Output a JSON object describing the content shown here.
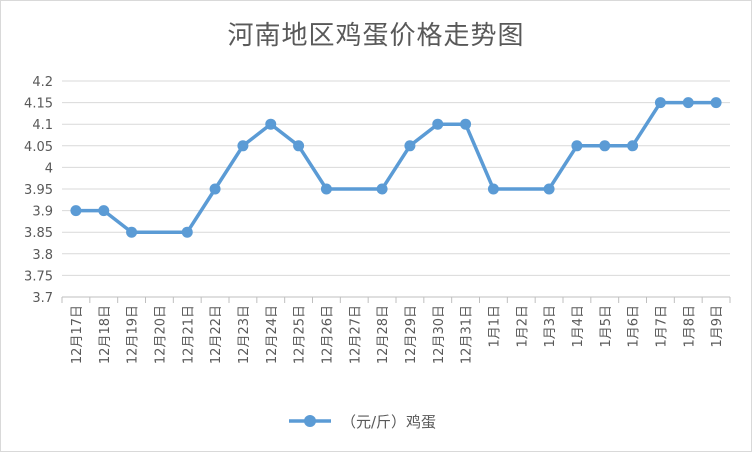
{
  "chart_data": {
    "type": "line",
    "title": "河南地区鸡蛋价格走势图",
    "xlabel": "",
    "ylabel": "",
    "categories": [
      "12月17日",
      "12月18日",
      "12月19日",
      "12月20日",
      "12月21日",
      "12月22日",
      "12月23日",
      "12月24日",
      "12月25日",
      "12月26日",
      "12月27日",
      "12月28日",
      "12月29日",
      "12月30日",
      "12月31日",
      "1月1日",
      "1月2日",
      "1月3日",
      "1月4日",
      "1月5日",
      "1月6日",
      "1月7日",
      "1月8日",
      "1月9日"
    ],
    "series": [
      {
        "name": "（元/斤）鸡蛋",
        "color": "#5b9bd5",
        "values": [
          3.9,
          3.9,
          3.85,
          null,
          3.85,
          3.95,
          4.05,
          4.1,
          4.05,
          3.95,
          null,
          3.95,
          4.05,
          4.1,
          4.1,
          3.95,
          null,
          3.95,
          4.05,
          4.05,
          4.05,
          4.15,
          4.15,
          4.15
        ]
      }
    ],
    "ylim": [
      3.7,
      4.2
    ],
    "yticks": [
      "3.7",
      "3.75",
      "3.8",
      "3.85",
      "3.9",
      "3.95",
      "4",
      "4.05",
      "4.1",
      "4.15",
      "4.2"
    ],
    "grid": true,
    "legend": "bottom"
  }
}
